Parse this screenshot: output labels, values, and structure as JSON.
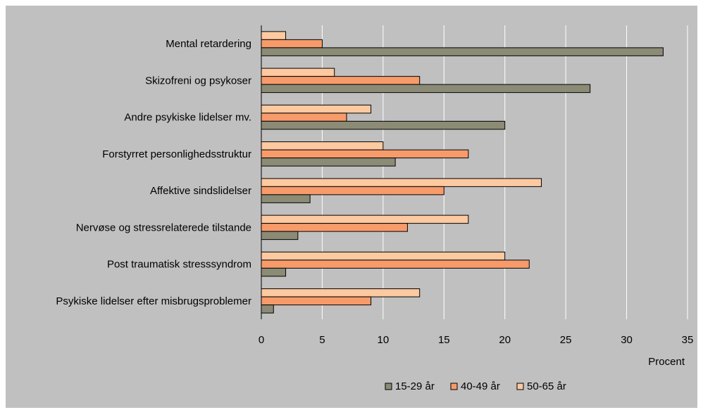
{
  "colors": {
    "frame": "#ffffff",
    "plot_background": "#c0c0c0",
    "gridline": "#ffffff",
    "bar_outline": "#000000",
    "legend_text": "#000000"
  },
  "chart_data": {
    "type": "bar",
    "orientation": "horizontal",
    "categories": [
      "Mental retardering",
      "Skizofreni og psykoser",
      "Andre psykiske lidelser mv.",
      "Forstyrret personlighedsstruktur",
      "Affektive sindslidelser",
      "Nervøse og stressrelaterede tilstande",
      "Post traumatisk stresssyndrom",
      "Psykiske lidelser efter misbrugsproblemer"
    ],
    "series": [
      {
        "name": "15-29 år",
        "color": "#8b8b76",
        "values": [
          33,
          27,
          20,
          11,
          4,
          3,
          2,
          1
        ]
      },
      {
        "name": "40-49 år",
        "color": "#f79b6b",
        "values": [
          5,
          13,
          7,
          17,
          15,
          12,
          22,
          9
        ]
      },
      {
        "name": "50-65 år",
        "color": "#fdc9a0",
        "values": [
          2,
          6,
          9,
          10,
          23,
          17,
          20,
          13
        ]
      }
    ],
    "xlabel": "Procent",
    "xlim": [
      0,
      35
    ],
    "xticks": [
      "0",
      "5",
      "10",
      "15",
      "20",
      "25",
      "30",
      "35"
    ],
    "grid": true,
    "legend_position": "bottom"
  }
}
